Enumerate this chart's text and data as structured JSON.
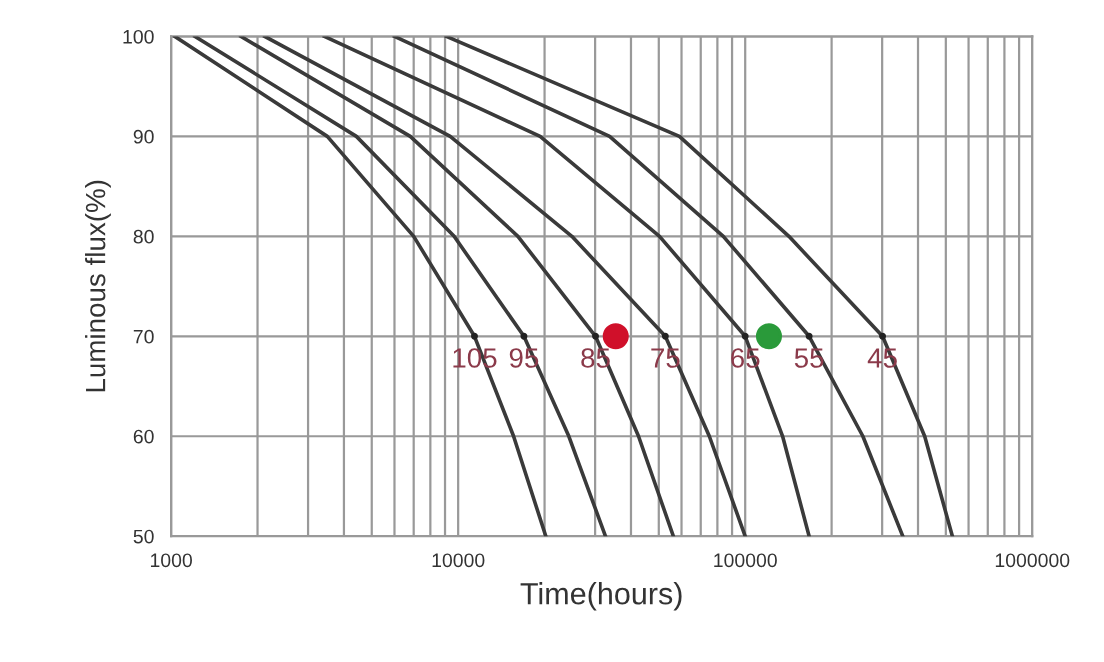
{
  "chart_data": {
    "type": "line",
    "xlabel": "Time(hours)",
    "ylabel": "Luminous flux(%)",
    "log": "x",
    "xlim": [
      1000,
      1000000
    ],
    "xticks": [
      1000,
      10000,
      100000,
      1000000
    ],
    "ylim": [
      50,
      100
    ],
    "yticks": [
      50,
      60,
      70,
      80,
      90,
      100
    ],
    "grid": true,
    "marker": "none",
    "line_style": "solid",
    "series": [
      {
        "color": "#3a3a3a",
        "x": [
          1030,
          3500,
          7000,
          11400,
          15600,
          20200
        ],
        "values": [
          100,
          90,
          80,
          70,
          60,
          50
        ]
      },
      {
        "color": "#3a3a3a",
        "x": [
          1210,
          4420,
          9680,
          16950,
          24300,
          32600
        ],
        "values": [
          100,
          90,
          80,
          70,
          60,
          50
        ]
      },
      {
        "color": "#3a3a3a",
        "x": [
          1750,
          6810,
          16150,
          30100,
          42500,
          56200
        ],
        "values": [
          100,
          90,
          80,
          70,
          60,
          50
        ]
      },
      {
        "color": "#3a3a3a",
        "x": [
          2120,
          9380,
          24900,
          52700,
          75000,
          100000
        ],
        "values": [
          100,
          90,
          80,
          70,
          60,
          50
        ]
      },
      {
        "color": "#3a3a3a",
        "x": [
          3420,
          19300,
          50300,
          100000,
          135000,
          167000
        ],
        "values": [
          100,
          90,
          80,
          70,
          60,
          50
        ]
      },
      {
        "color": "#3a3a3a",
        "x": [
          6000,
          33700,
          83900,
          167000,
          257000,
          354000
        ],
        "values": [
          100,
          90,
          80,
          70,
          60,
          50
        ]
      },
      {
        "color": "#3a3a3a",
        "x": [
          9090,
          59000,
          142000,
          301000,
          422000,
          527000
        ],
        "values": [
          100,
          90,
          80,
          70,
          60,
          50
        ]
      },
      {
        "type": "scatter",
        "marker": "circle",
        "x": [
          35400,
          121000
        ],
        "values": [
          70,
          70
        ],
        "colors": [
          "#d0102a",
          "#2a9a3a"
        ]
      }
    ],
    "annotations": [
      {
        "text": "105",
        "x": 11400,
        "y": 70
      },
      {
        "text": "95",
        "x": 16950,
        "y": 70
      },
      {
        "text": "85",
        "x": 30100,
        "y": 70
      },
      {
        "text": "75",
        "x": 52700,
        "y": 70
      },
      {
        "text": "65",
        "x": 100000,
        "y": 70
      },
      {
        "text": "55",
        "x": 167000,
        "y": 70
      },
      {
        "text": "45",
        "x": 301000,
        "y": 70
      }
    ],
    "legend": false
  }
}
